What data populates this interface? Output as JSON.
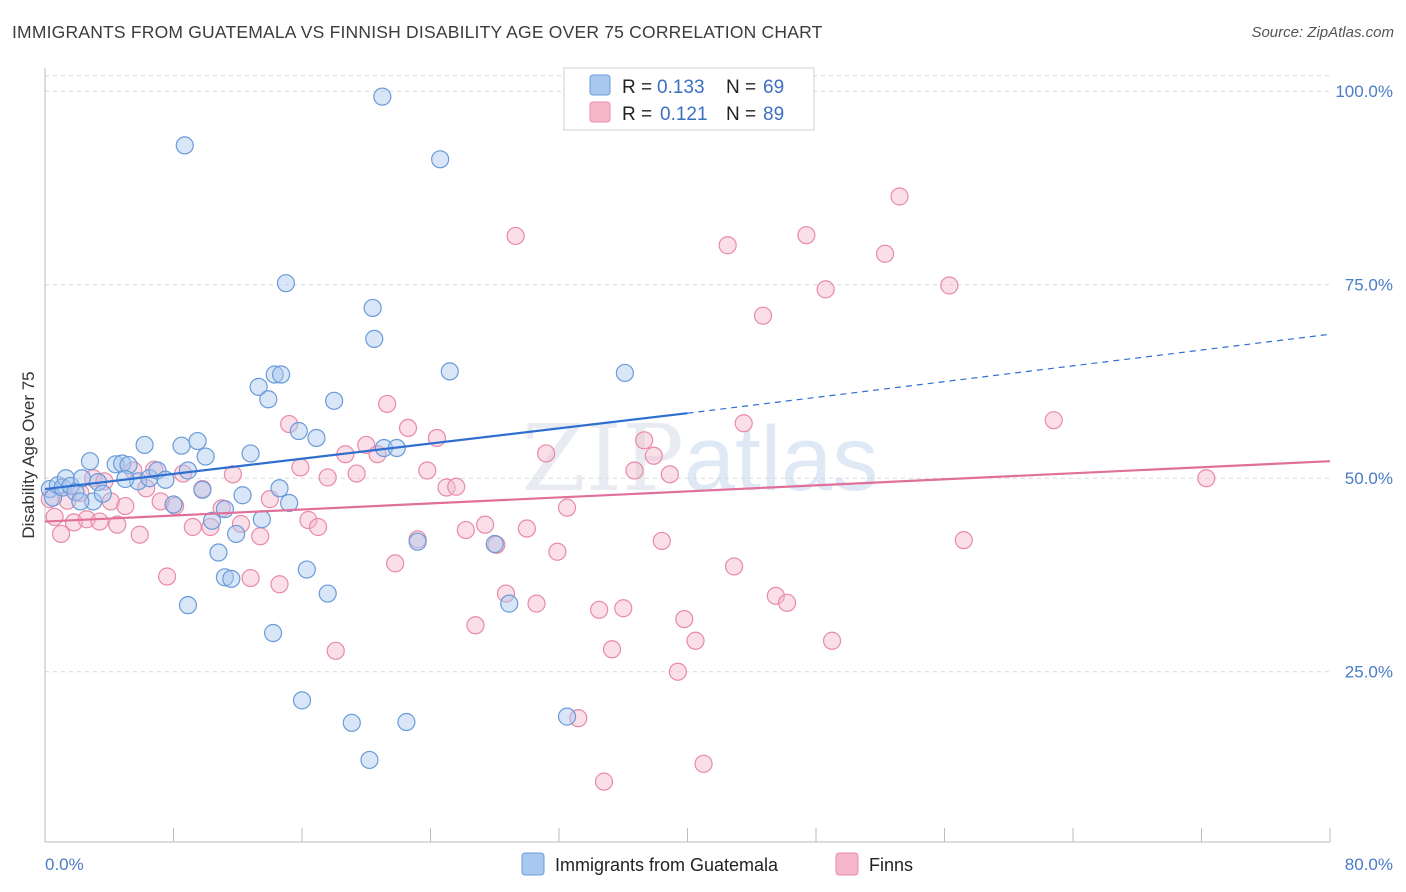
{
  "title": "IMMIGRANTS FROM GUATEMALA VS FINNISH DISABILITY AGE OVER 75 CORRELATION CHART",
  "source": "Source: ZipAtlas.com",
  "colors": {
    "blue_fill": "#a9c8ef",
    "blue_stroke": "#6a9bd8",
    "blue_line": "#2f6fd0",
    "pink_fill": "#f5b8cb",
    "pink_stroke": "#e98aa8",
    "pink_line": "#e0709a",
    "grid": "#d8d8d8",
    "tick_text": "#4a7cc7"
  },
  "legend": {
    "r_label": "R =",
    "n_label": "N =",
    "blue": {
      "r": "0.133",
      "n": "69"
    },
    "pink": {
      "r": "0.121",
      "n": "89"
    }
  },
  "bottom_legend": {
    "blue": "Immigrants from Guatemala",
    "pink": "Finns"
  },
  "chart_data": {
    "type": "scatter",
    "title": "IMMIGRANTS FROM GUATEMALA VS FINNISH DISABILITY AGE OVER 75 CORRELATION CHART",
    "xlabel": "",
    "ylabel": "Disability Age Over 75",
    "xlim": [
      0,
      80
    ],
    "ylim": [
      3,
      103
    ],
    "x_tick_labels": [
      "0.0%",
      "80.0%"
    ],
    "y_ticks": [
      25,
      50,
      75,
      100
    ],
    "y_tick_labels": [
      "25.0%",
      "50.0%",
      "75.0%",
      "100.0%"
    ],
    "grid": "horizontal dashed",
    "legend_position": "top-center",
    "watermark": "ZIPatlas",
    "series": [
      {
        "name": "Immigrants from Guatemala",
        "color": "#a9c8ef",
        "R": 0.133,
        "N": 69,
        "trend": {
          "x": [
            0,
            40
          ],
          "y": [
            48.6,
            58.4
          ]
        },
        "trend_extension": {
          "x": [
            40,
            80
          ],
          "y": [
            58.4,
            68.6
          ]
        },
        "points": [
          [
            0.3,
            48.6
          ],
          [
            0.5,
            47.5
          ],
          [
            0.8,
            49.1
          ],
          [
            1.1,
            48.8
          ],
          [
            1.3,
            50.0
          ],
          [
            1.6,
            49.0
          ],
          [
            1.9,
            48.2
          ],
          [
            2.3,
            50.0
          ],
          [
            2.8,
            52.2
          ],
          [
            3.0,
            47.0
          ],
          [
            3.3,
            49.5
          ],
          [
            3.6,
            48.0
          ],
          [
            4.4,
            51.8
          ],
          [
            4.8,
            51.9
          ],
          [
            5.2,
            51.7
          ],
          [
            5.8,
            49.6
          ],
          [
            6.2,
            54.3
          ],
          [
            6.5,
            50.0
          ],
          [
            7.0,
            51.0
          ],
          [
            7.5,
            49.8
          ],
          [
            8.0,
            46.6
          ],
          [
            8.5,
            54.2
          ],
          [
            8.9,
            51.0
          ],
          [
            9.5,
            54.8
          ],
          [
            10.0,
            52.8
          ],
          [
            9.8,
            48.5
          ],
          [
            10.4,
            44.5
          ],
          [
            10.8,
            40.4
          ],
          [
            11.2,
            37.2
          ],
          [
            11.6,
            37.0
          ],
          [
            11.9,
            42.8
          ],
          [
            12.3,
            47.8
          ],
          [
            12.8,
            53.2
          ],
          [
            13.3,
            61.8
          ],
          [
            13.9,
            60.2
          ],
          [
            14.3,
            63.4
          ],
          [
            14.6,
            48.7
          ],
          [
            15.0,
            75.2
          ],
          [
            15.2,
            46.8
          ],
          [
            15.8,
            56.1
          ],
          [
            16.3,
            38.2
          ],
          [
            16.9,
            55.2
          ],
          [
            17.6,
            35.1
          ],
          [
            18.0,
            60.0
          ],
          [
            20.4,
            72.0
          ],
          [
            20.5,
            68.0
          ],
          [
            21.1,
            53.9
          ],
          [
            21.9,
            53.9
          ],
          [
            23.2,
            41.8
          ],
          [
            22.5,
            18.5
          ],
          [
            24.6,
            91.2
          ],
          [
            25.2,
            63.8
          ],
          [
            28.0,
            41.5
          ],
          [
            28.9,
            33.8
          ],
          [
            32.5,
            19.2
          ],
          [
            36.1,
            63.6
          ],
          [
            8.7,
            93.0
          ],
          [
            14.7,
            63.4
          ],
          [
            19.1,
            18.4
          ],
          [
            20.2,
            13.6
          ],
          [
            8.9,
            33.6
          ],
          [
            14.2,
            30.0
          ],
          [
            16.0,
            21.3
          ],
          [
            21.0,
            99.3
          ],
          [
            33.8,
            99.1
          ],
          [
            11.2,
            46.0
          ],
          [
            13.5,
            44.7
          ],
          [
            2.2,
            47.0
          ],
          [
            5.0,
            49.9
          ]
        ]
      },
      {
        "name": "Finns",
        "color": "#f5b8cb",
        "R": 0.121,
        "N": 89,
        "trend": {
          "x": [
            0,
            80
          ],
          "y": [
            44.4,
            52.2
          ]
        },
        "points": [
          [
            0.3,
            47.3
          ],
          [
            0.6,
            45.0
          ],
          [
            1.0,
            42.8
          ],
          [
            1.4,
            47.1
          ],
          [
            1.8,
            44.3
          ],
          [
            2.2,
            48.1
          ],
          [
            2.6,
            44.7
          ],
          [
            3.0,
            50.0
          ],
          [
            3.4,
            44.4
          ],
          [
            3.7,
            49.6
          ],
          [
            4.1,
            47.0
          ],
          [
            4.5,
            44.0
          ],
          [
            5.0,
            46.4
          ],
          [
            5.5,
            51.0
          ],
          [
            5.9,
            42.7
          ],
          [
            6.3,
            48.7
          ],
          [
            6.8,
            51.1
          ],
          [
            7.2,
            47.0
          ],
          [
            7.6,
            37.3
          ],
          [
            8.1,
            46.4
          ],
          [
            8.6,
            50.6
          ],
          [
            9.2,
            43.7
          ],
          [
            9.8,
            48.6
          ],
          [
            10.3,
            43.7
          ],
          [
            11.0,
            46.1
          ],
          [
            11.7,
            50.5
          ],
          [
            12.2,
            44.1
          ],
          [
            12.8,
            37.1
          ],
          [
            13.4,
            42.5
          ],
          [
            14.0,
            47.3
          ],
          [
            14.6,
            36.3
          ],
          [
            15.2,
            57.0
          ],
          [
            15.9,
            51.4
          ],
          [
            16.4,
            44.6
          ],
          [
            17.0,
            43.7
          ],
          [
            17.6,
            50.1
          ],
          [
            18.1,
            27.7
          ],
          [
            18.7,
            53.1
          ],
          [
            19.4,
            50.6
          ],
          [
            20.0,
            54.3
          ],
          [
            20.7,
            53.1
          ],
          [
            21.3,
            59.6
          ],
          [
            21.8,
            39.0
          ],
          [
            22.6,
            56.5
          ],
          [
            23.2,
            42.1
          ],
          [
            23.8,
            51.0
          ],
          [
            24.4,
            55.2
          ],
          [
            25.0,
            48.8
          ],
          [
            25.6,
            48.9
          ],
          [
            26.2,
            43.3
          ],
          [
            26.8,
            31.0
          ],
          [
            27.4,
            44.0
          ],
          [
            28.1,
            41.4
          ],
          [
            28.7,
            35.1
          ],
          [
            29.3,
            81.3
          ],
          [
            30.0,
            43.5
          ],
          [
            30.6,
            33.8
          ],
          [
            31.2,
            53.2
          ],
          [
            31.9,
            40.5
          ],
          [
            32.5,
            46.2
          ],
          [
            33.2,
            19.0
          ],
          [
            34.5,
            33.0
          ],
          [
            34.8,
            10.8
          ],
          [
            35.3,
            27.9
          ],
          [
            36.0,
            33.2
          ],
          [
            36.7,
            51.0
          ],
          [
            37.3,
            54.9
          ],
          [
            37.9,
            52.9
          ],
          [
            38.4,
            41.9
          ],
          [
            38.9,
            50.5
          ],
          [
            39.4,
            25.0
          ],
          [
            39.8,
            31.8
          ],
          [
            40.5,
            29.0
          ],
          [
            41.0,
            13.1
          ],
          [
            42.5,
            80.1
          ],
          [
            42.9,
            38.6
          ],
          [
            43.5,
            57.1
          ],
          [
            44.7,
            71.0
          ],
          [
            45.5,
            34.8
          ],
          [
            46.2,
            33.9
          ],
          [
            47.4,
            81.4
          ],
          [
            48.6,
            74.4
          ],
          [
            49.0,
            29.0
          ],
          [
            52.3,
            79.0
          ],
          [
            53.2,
            86.4
          ],
          [
            56.3,
            74.9
          ],
          [
            57.2,
            42.0
          ],
          [
            62.8,
            57.5
          ],
          [
            72.3,
            50.0
          ]
        ]
      }
    ]
  }
}
